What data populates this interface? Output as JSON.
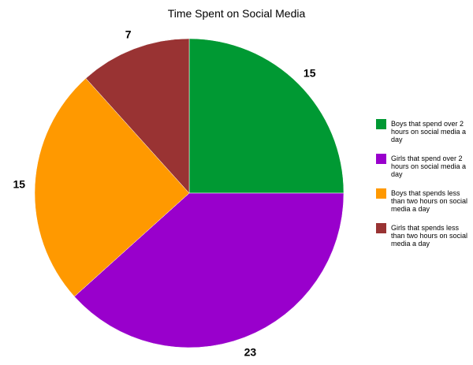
{
  "chart_data": {
    "type": "pie",
    "title": "Time Spent on Social Media",
    "slices": [
      {
        "label": "Boys that spend over 2 hours on social media a day",
        "value": 15,
        "color": "#009933"
      },
      {
        "label": "Girls that spend over 2 hours on social media a day",
        "value": 23,
        "color": "#9900cc"
      },
      {
        "label": "Boys that spends less than two hours on social media a day",
        "value": 15,
        "color": "#ff9900"
      },
      {
        "label": "Girls that spends less than two hours on social media a day",
        "value": 7,
        "color": "#993333"
      }
    ],
    "legend": "right"
  }
}
